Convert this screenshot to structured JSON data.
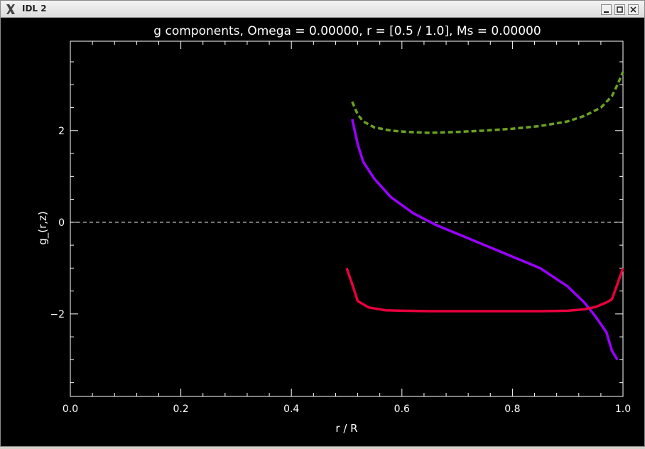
{
  "window": {
    "title": "IDL 2",
    "app_icon": "x-logo-icon",
    "buttons": [
      "minimize-icon",
      "maximize-icon",
      "close-icon"
    ]
  },
  "chart_data": {
    "type": "line",
    "title": "g components, Omega =  0.00000, r = [0.5 / 1.0], Ms =  0.00000",
    "xlabel": "r / R",
    "ylabel": "g_(r,z)",
    "xlim": [
      0.0,
      1.0
    ],
    "ylim": [
      -3.8,
      3.95
    ],
    "xticks": [
      "0.0",
      "0.2",
      "0.4",
      "0.6",
      "0.8",
      "1.0"
    ],
    "xtick_values": [
      0.0,
      0.2,
      0.4,
      0.6,
      0.8,
      1.0
    ],
    "yticks": [
      "−2",
      "0",
      "2"
    ],
    "ytick_values": [
      -2,
      0,
      2
    ],
    "background": "#000000",
    "axis_color": "#ffffff",
    "grid": false,
    "reference_line": {
      "y": 0,
      "style": "dashed",
      "color": "#ffffff"
    },
    "series": [
      {
        "color": "#6aa121",
        "style": "dotted",
        "x": [
          0.51,
          0.52,
          0.53,
          0.55,
          0.58,
          0.61,
          0.65,
          0.7,
          0.75,
          0.8,
          0.85,
          0.9,
          0.93,
          0.96,
          0.98,
          0.99,
          1.0
        ],
        "y": [
          2.63,
          2.35,
          2.2,
          2.07,
          2.0,
          1.97,
          1.95,
          1.97,
          2.0,
          2.04,
          2.1,
          2.2,
          2.32,
          2.5,
          2.75,
          3.0,
          3.28
        ]
      },
      {
        "color": "#9b00ff",
        "style": "solid",
        "x": [
          0.51,
          0.52,
          0.53,
          0.55,
          0.58,
          0.62,
          0.66,
          0.7,
          0.75,
          0.8,
          0.85,
          0.9,
          0.93,
          0.95,
          0.97,
          0.98,
          0.99
        ],
        "y": [
          2.25,
          1.7,
          1.32,
          0.95,
          0.55,
          0.2,
          -0.05,
          -0.25,
          -0.5,
          -0.75,
          -1.0,
          -1.4,
          -1.75,
          -2.05,
          -2.4,
          -2.8,
          -3.0
        ]
      },
      {
        "color": "#e8003c",
        "style": "solid",
        "x": [
          0.5,
          0.51,
          0.52,
          0.54,
          0.57,
          0.6,
          0.65,
          0.7,
          0.75,
          0.8,
          0.85,
          0.9,
          0.93,
          0.95,
          0.97,
          0.98,
          0.99,
          1.0
        ],
        "y": [
          -1.0,
          -1.35,
          -1.72,
          -1.86,
          -1.92,
          -1.93,
          -1.94,
          -1.94,
          -1.94,
          -1.94,
          -1.94,
          -1.93,
          -1.9,
          -1.85,
          -1.75,
          -1.68,
          -1.35,
          -1.0
        ]
      }
    ]
  }
}
